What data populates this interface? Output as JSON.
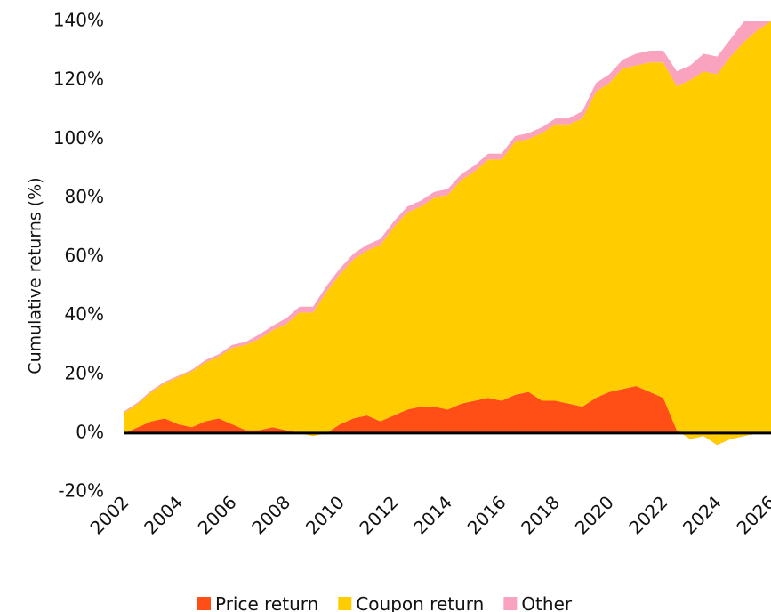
{
  "chart_data": {
    "type": "stacked_area",
    "y_label": "Cumulative returns (%)",
    "x": [
      2002,
      2002.5,
      2003,
      2003.5,
      2004,
      2004.5,
      2005,
      2005.5,
      2006,
      2006.5,
      2007,
      2007.5,
      2008,
      2008.5,
      2009,
      2009.5,
      2010,
      2010.5,
      2011,
      2011.5,
      2012,
      2012.5,
      2013,
      2013.5,
      2014,
      2014.5,
      2015,
      2015.5,
      2016,
      2016.5,
      2017,
      2017.5,
      2018,
      2018.5,
      2019,
      2019.5,
      2020,
      2020.5,
      2021,
      2021.5,
      2022,
      2022.5,
      2023,
      2023.5,
      2024,
      2024.5,
      2025,
      2025.5,
      2026
    ],
    "series": [
      {
        "name": "Price return",
        "color": "#ff4f17",
        "values": [
          0,
          2,
          4,
          5,
          3,
          2,
          4,
          5,
          3,
          1,
          1,
          2,
          1,
          0,
          -1,
          0,
          3,
          5,
          6,
          4,
          6,
          8,
          9,
          9,
          8,
          10,
          11,
          12,
          11,
          13,
          14,
          11,
          11,
          10,
          9,
          12,
          14,
          15,
          16,
          14,
          12,
          1,
          -2,
          -1,
          -4,
          -2,
          -1,
          0,
          0
        ]
      },
      {
        "name": "Coupon return",
        "color": "#ffcc00",
        "values": [
          7,
          8,
          10,
          12,
          16,
          19,
          20,
          21,
          26,
          29,
          31,
          33,
          36,
          41,
          42,
          48,
          51,
          54,
          56,
          60,
          64,
          67,
          68,
          71,
          73,
          76,
          78,
          81,
          82,
          86,
          86,
          91,
          94,
          95,
          98,
          104,
          105,
          109,
          109,
          112,
          114,
          117,
          122,
          124,
          126,
          130,
          134,
          137,
          140
        ]
      },
      {
        "name": "Other",
        "color": "#f9a3be",
        "values": [
          0.5,
          0.5,
          0.5,
          0.5,
          0.5,
          0.5,
          0.8,
          0.8,
          1,
          1,
          1.5,
          1.5,
          2,
          2,
          2,
          2,
          2,
          2,
          2,
          2,
          2,
          2,
          2,
          2,
          2,
          2,
          2,
          2,
          2,
          2,
          2,
          2,
          2,
          2,
          2.5,
          3,
          3,
          3,
          4,
          4,
          4,
          5,
          5,
          6,
          6,
          6,
          7,
          7,
          7
        ]
      }
    ],
    "xlim": [
      2002,
      2026
    ],
    "xticks": [
      2002,
      2004,
      2006,
      2008,
      2010,
      2012,
      2014,
      2016,
      2018,
      2020,
      2022,
      2024,
      2026
    ],
    "ylim": [
      -20,
      140
    ],
    "yticks": [
      {
        "value": -20,
        "label": "-20%"
      },
      {
        "value": 0,
        "label": "0%"
      },
      {
        "value": 20,
        "label": "20%"
      },
      {
        "value": 40,
        "label": "40%"
      },
      {
        "value": 60,
        "label": "60%"
      },
      {
        "value": 80,
        "label": "80%"
      },
      {
        "value": 100,
        "label": "100%"
      },
      {
        "value": 120,
        "label": "120%"
      },
      {
        "value": 140,
        "label": "140%"
      }
    ],
    "grid": false,
    "legend": "bottom"
  }
}
